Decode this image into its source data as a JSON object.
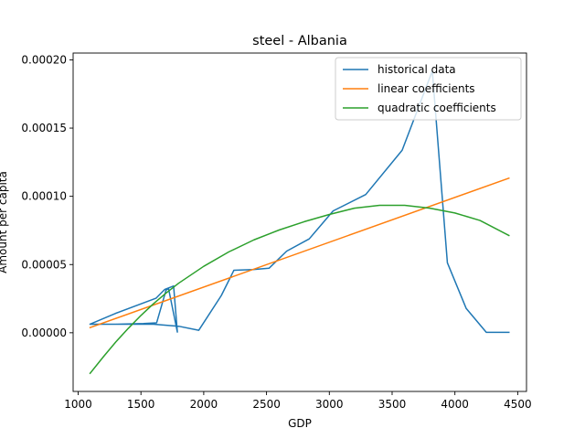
{
  "chart_data": {
    "type": "line",
    "title": "steel - Albania",
    "xlabel": "GDP",
    "ylabel": "Amount per capita",
    "xlim": [
      960,
      4570
    ],
    "ylim": [
      -4.3e-05,
      0.000205
    ],
    "xticks": [
      1000,
      1500,
      2000,
      2500,
      3000,
      3500,
      4000,
      4500
    ],
    "xtick_labels": [
      "1000",
      "1500",
      "2000",
      "2500",
      "3000",
      "3500",
      "4000",
      "4500"
    ],
    "yticks": [
      0.0,
      5e-05,
      0.0001,
      0.00015,
      0.0002
    ],
    "ytick_labels": [
      "0.00000",
      "0.00005",
      "0.00010",
      "0.00015",
      "0.00020"
    ],
    "legend_position": "top-right",
    "grid": false,
    "series": [
      {
        "name": "historical data",
        "color": "#1f77b4",
        "x": [
          1095,
          1300,
          1620,
          1690,
          1760,
          1790,
          1720,
          1700,
          1625,
          1520,
          1300,
          1200,
          1095,
          1130,
          1600,
          1800,
          1960,
          2140,
          2240,
          2390,
          2520,
          2660,
          2840,
          3030,
          3290,
          3580,
          3820,
          3940,
          4090,
          4250,
          4430
        ],
        "y": [
          6.3e-06,
          1.43e-05,
          2.53e-05,
          3.18e-05,
          3.43e-05,
          5e-07,
          3.23e-05,
          3.13e-05,
          7.3e-06,
          6.8e-06,
          6.3e-06,
          6.3e-06,
          6.3e-06,
          6.3e-06,
          6.3e-06,
          4.8e-06,
          1.8e-06,
          2.73e-05,
          4.58e-05,
          4.63e-05,
          4.73e-05,
          5.98e-05,
          6.88e-05,
          8.93e-05,
          0.0001013,
          0.0001338,
          0.0001918,
          5.13e-05,
          1.78e-05,
          3e-07,
          3e-07
        ]
      },
      {
        "name": "linear coefficients",
        "color": "#ff7f0e",
        "x": [
          1095,
          4430
        ],
        "y": [
          3.8e-06,
          0.0001133
        ]
      },
      {
        "name": "quadratic coefficients",
        "color": "#2ca02c",
        "x": [
          1095,
          1200,
          1300,
          1400,
          1500,
          1600,
          1700,
          1800,
          2000,
          2200,
          2400,
          2600,
          2800,
          3000,
          3200,
          3400,
          3600,
          3800,
          4000,
          4200,
          4430
        ],
        "y": [
          -2.97e-05,
          -1.77e-05,
          -6.7e-06,
          3.3e-06,
          1.27e-05,
          2.13e-05,
          2.91e-05,
          3.63e-05,
          4.87e-05,
          5.93e-05,
          6.81e-05,
          7.53e-05,
          8.14e-05,
          8.67e-05,
          9.13e-05,
          9.34e-05,
          9.34e-05,
          9.13e-05,
          8.78e-05,
          8.23e-05,
          7.13e-05
        ]
      }
    ]
  }
}
